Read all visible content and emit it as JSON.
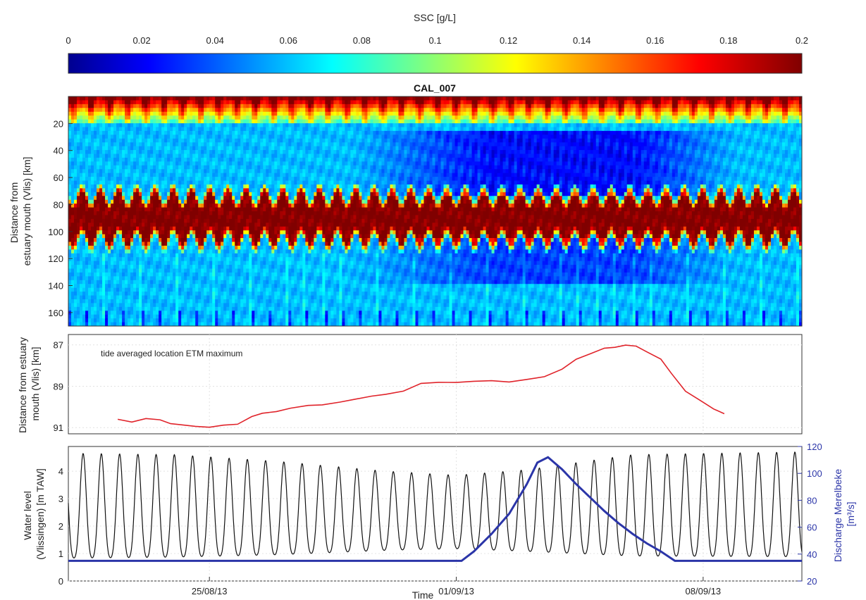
{
  "chart_data": [
    {
      "type": "heatmap",
      "title": "CAL_007",
      "colorbar": {
        "label": "SSC [g/L]",
        "range": [
          0,
          0.2
        ],
        "ticks": [
          "0",
          "0.02",
          "0.04",
          "0.06",
          "0.08",
          "0.1",
          "0.12",
          "0.14",
          "0.16",
          "0.18",
          "0.2"
        ],
        "colormap": "jet"
      },
      "ylabel": "Distance from estuary mouth (Vlis) [km]",
      "ylabel_lines": [
        "Distance from",
        "estuary mouth (Vlis) [km]"
      ],
      "ylim": [
        0,
        170
      ],
      "yticks": [
        "20",
        "40",
        "60",
        "80",
        "100",
        "120",
        "140",
        "160"
      ],
      "y_reversed": true,
      "xlim_days": [
        0,
        20.8
      ]
    },
    {
      "type": "line",
      "ylabel": "Distance from estuary mouth (Vlis) [km]",
      "ylabel_lines": [
        "Distance from estuary",
        "mouth (Vlis) [km]"
      ],
      "ylim": [
        86.5,
        91.3
      ],
      "yticks": [
        "87",
        "89",
        "91"
      ],
      "y_reversed": true,
      "annotation": "tide averaged location ETM maximum",
      "series": [
        {
          "color": "#e0232a",
          "x": [
            1.4,
            1.8,
            2.2,
            2.6,
            2.9,
            3.2,
            3.6,
            4.0,
            4.4,
            4.8,
            5.2,
            5.5,
            5.9,
            6.3,
            6.8,
            7.2,
            7.7,
            8.1,
            8.6,
            9.0,
            9.5,
            10.0,
            10.5,
            11.0,
            11.5,
            12.0,
            12.5,
            13.0,
            13.5,
            14.0,
            14.4,
            14.8,
            15.2,
            15.5,
            15.8,
            16.1,
            16.4,
            16.8,
            17.1,
            17.5,
            17.9,
            18.3,
            18.6
          ],
          "y": [
            90.6,
            90.7,
            90.6,
            90.6,
            90.8,
            90.9,
            90.9,
            91.0,
            90.9,
            90.8,
            90.5,
            90.3,
            90.2,
            90.1,
            89.9,
            89.9,
            89.8,
            89.6,
            89.5,
            89.4,
            89.2,
            88.9,
            88.8,
            88.8,
            88.8,
            88.7,
            88.8,
            88.7,
            88.5,
            88.2,
            87.7,
            87.4,
            87.2,
            87.1,
            87.0,
            87.1,
            87.3,
            87.7,
            88.4,
            89.2,
            89.7,
            90.1,
            90.3
          ]
        }
      ]
    },
    {
      "type": "line",
      "xlabel": "Time",
      "xticks": [
        {
          "day": 4.0,
          "label": "25/08/13"
        },
        {
          "day": 11.0,
          "label": "01/09/13"
        },
        {
          "day": 18.0,
          "label": "08/09/13"
        }
      ],
      "ylabel": "Water level (Vlissingen) [m TAW]",
      "ylabel_lines": [
        "Water level",
        "(Vlissingen) [m TAW]"
      ],
      "ylim": [
        0,
        4.9
      ],
      "yticks": [
        "0",
        "1",
        "2",
        "3",
        "4"
      ],
      "y2label": "Discharge Merelbeke [m3/s]",
      "y2label_lines": [
        "Discharge Merelbeke",
        "[m³/s]"
      ],
      "y2lim": [
        20,
        120
      ],
      "y2ticks": [
        "20",
        "40",
        "60",
        "80",
        "100",
        "120"
      ],
      "series": [
        {
          "color": "#111111",
          "axis": "left",
          "tidal_period_days": 0.5175,
          "high_water": [
            4.65,
            4.6,
            4.35,
            4.0,
            3.85,
            4.05,
            4.6,
            4.7
          ],
          "low_water": [
            0.15,
            0.2,
            0.35,
            0.6,
            0.7,
            0.55,
            0.25,
            0.2
          ],
          "envelope_days": [
            0,
            3,
            6,
            9,
            11,
            13,
            16,
            20.8
          ]
        },
        {
          "color": "#2b35a8",
          "axis": "right",
          "x": [
            0,
            11.15,
            11.5,
            12.0,
            12.5,
            13.0,
            13.3,
            13.6,
            14.0,
            14.4,
            14.8,
            15.2,
            15.6,
            16.0,
            16.4,
            16.8,
            17.2,
            20.8
          ],
          "y": [
            35,
            35,
            42,
            55,
            70,
            92,
            108,
            112,
            103,
            92,
            82,
            72,
            63,
            55,
            48,
            42,
            35,
            35
          ]
        }
      ]
    }
  ]
}
